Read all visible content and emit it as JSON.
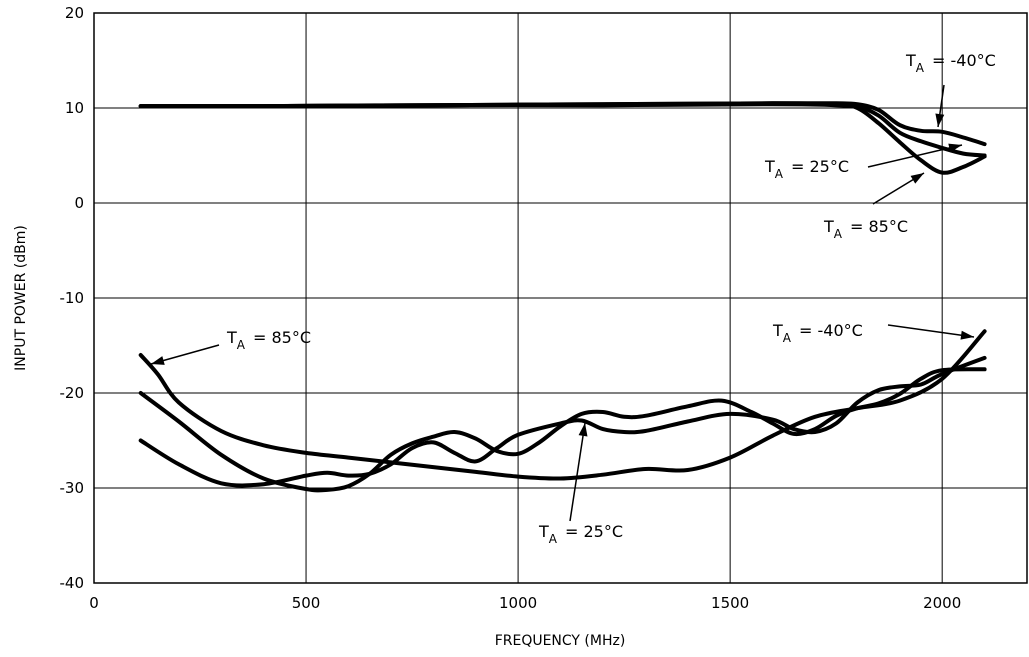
{
  "chart_data": {
    "type": "line",
    "title": "",
    "xlabel": "FREQUENCY (MHz)",
    "ylabel": "INPUT POWER (dBm)",
    "xlim": [
      0,
      2200
    ],
    "ylim": [
      -40,
      20
    ],
    "xticks": [
      0,
      500,
      1000,
      1500,
      2000
    ],
    "yticks": [
      -40,
      -30,
      -20,
      -10,
      0,
      10,
      20
    ],
    "grid": true,
    "series": [
      {
        "x": [
          110,
          400,
          800,
          1200,
          1600,
          1750,
          1800,
          1850,
          1900,
          1950,
          2000,
          2050,
          2100
        ],
        "y": [
          10.2,
          10.2,
          10.3,
          10.4,
          10.5,
          10.5,
          10.4,
          9.8,
          8.2,
          7.6,
          7.5,
          6.9,
          6.2
        ]
      },
      {
        "x": [
          110,
          400,
          800,
          1200,
          1600,
          1750,
          1800,
          1850,
          1900,
          1950,
          2000,
          2050,
          2100
        ],
        "y": [
          10.2,
          10.2,
          10.3,
          10.4,
          10.5,
          10.4,
          10.2,
          9.2,
          7.4,
          6.5,
          5.8,
          5.2,
          5.0
        ]
      },
      {
        "x": [
          110,
          400,
          800,
          1200,
          1600,
          1750,
          1800,
          1850,
          1900,
          1950,
          2000,
          2050,
          2100
        ],
        "y": [
          10.2,
          10.2,
          10.3,
          10.3,
          10.4,
          10.3,
          10.0,
          8.4,
          6.4,
          4.5,
          3.2,
          3.8,
          4.9
        ]
      },
      {
        "x": [
          110,
          150,
          200,
          300,
          400,
          500,
          600,
          700,
          800,
          900,
          1000,
          1100,
          1200,
          1300,
          1400,
          1500,
          1600,
          1700,
          1800,
          1900,
          2000,
          2100
        ],
        "y": [
          -16,
          -18,
          -21,
          -24,
          -25.5,
          -26.3,
          -26.8,
          -27.3,
          -27.8,
          -28.3,
          -28.8,
          -29,
          -28.6,
          -28,
          -28.1,
          -26.8,
          -24.5,
          -22.5,
          -21.6,
          -20.8,
          -18.5,
          -13.5
        ]
      },
      {
        "x": [
          110,
          200,
          300,
          400,
          500,
          550,
          600,
          650,
          700,
          750,
          800,
          850,
          900,
          950,
          1000,
          1050,
          1100,
          1150,
          1200,
          1250,
          1300,
          1400,
          1480,
          1550,
          1600,
          1650,
          1700,
          1750,
          1800,
          1850,
          1900,
          1950,
          2000,
          2100
        ],
        "y": [
          -20,
          -23,
          -26.5,
          -29,
          -30.1,
          -30.2,
          -29.8,
          -28.5,
          -26.5,
          -25.3,
          -24.6,
          -24.1,
          -24.8,
          -26.1,
          -26.4,
          -25.2,
          -23.5,
          -22.2,
          -22,
          -22.5,
          -22.4,
          -21.4,
          -20.8,
          -22,
          -23.2,
          -24.3,
          -23.8,
          -22.4,
          -21.6,
          -21.1,
          -20.1,
          -18.5,
          -17.6,
          -17.5
        ]
      },
      {
        "x": [
          110,
          200,
          300,
          400,
          500,
          550,
          600,
          650,
          700,
          750,
          800,
          850,
          900,
          950,
          1000,
          1100,
          1150,
          1200,
          1250,
          1300,
          1400,
          1500,
          1600,
          1650,
          1700,
          1750,
          1800,
          1850,
          1900,
          1950,
          2000,
          2100
        ],
        "y": [
          -25,
          -27.5,
          -29.5,
          -29.6,
          -28.7,
          -28.4,
          -28.7,
          -28.5,
          -27.5,
          -25.8,
          -25.2,
          -26.3,
          -27.2,
          -25.8,
          -24.4,
          -23.2,
          -22.9,
          -23.8,
          -24.1,
          -24,
          -23,
          -22.2,
          -22.8,
          -23.8,
          -24.1,
          -23.2,
          -21,
          -19.7,
          -19.3,
          -19.1,
          -18,
          -16.3
        ]
      }
    ],
    "annotations": [
      {
        "text": "= -40°C",
        "subscript": "A"
      },
      {
        "text": "= 25°C",
        "subscript": "A"
      },
      {
        "text": "= 85°C",
        "subscript": "A"
      },
      {
        "text": "= 85°C",
        "subscript": "A"
      },
      {
        "text": "= -40°C",
        "subscript": "A"
      },
      {
        "text": "= 25°C",
        "subscript": "A"
      }
    ]
  }
}
